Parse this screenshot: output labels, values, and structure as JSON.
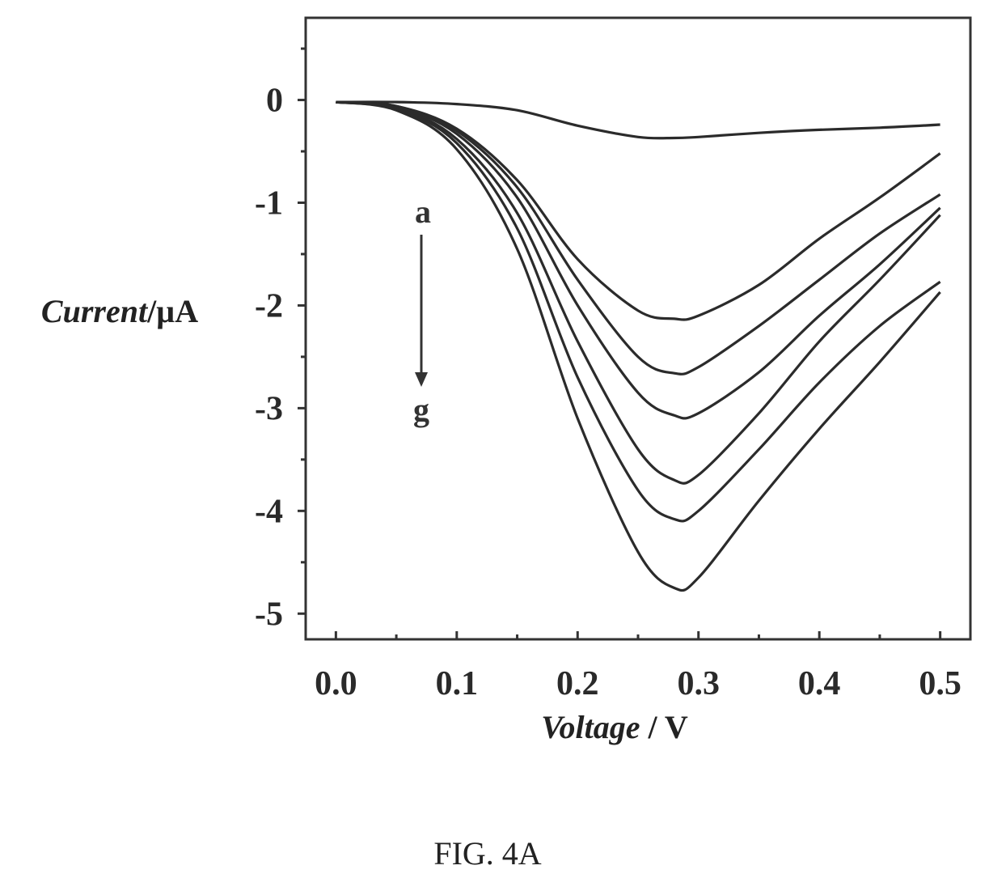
{
  "chart_data": {
    "type": "line",
    "xlabel_italic": "Voltage",
    "xlabel_rest": " / V",
    "ylabel_italic": "Current",
    "ylabel_rest": "/µA",
    "xlim": [
      -0.025,
      0.525
    ],
    "ylim": [
      -5.25,
      0.8
    ],
    "xticks": [
      "0.0",
      "0.1",
      "0.2",
      "0.3",
      "0.4",
      "0.5"
    ],
    "yticks": [
      "0",
      "-1",
      "-2",
      "-3",
      "-4",
      "-5"
    ],
    "grid": false,
    "x": [
      0.0,
      0.05,
      0.1,
      0.15,
      0.2,
      0.25,
      0.28,
      0.3,
      0.35,
      0.4,
      0.45,
      0.5
    ],
    "series": [
      {
        "values": [
          -0.02,
          -0.02,
          -0.04,
          -0.1,
          -0.25,
          -0.36,
          -0.37,
          -0.36,
          -0.32,
          -0.29,
          -0.27,
          -0.24
        ]
      },
      {
        "values": [
          -0.02,
          -0.06,
          -0.28,
          -0.78,
          -1.55,
          -2.05,
          -2.13,
          -2.1,
          -1.8,
          -1.35,
          -0.95,
          -0.52
        ]
      },
      {
        "values": [
          -0.02,
          -0.06,
          -0.3,
          -0.85,
          -1.75,
          -2.5,
          -2.66,
          -2.6,
          -2.2,
          -1.75,
          -1.3,
          -0.92
        ]
      },
      {
        "values": [
          -0.02,
          -0.07,
          -0.33,
          -0.95,
          -2.0,
          -2.85,
          -3.07,
          -3.05,
          -2.65,
          -2.1,
          -1.6,
          -1.05
        ]
      },
      {
        "values": [
          -0.02,
          -0.08,
          -0.38,
          -1.1,
          -2.35,
          -3.4,
          -3.7,
          -3.65,
          -3.05,
          -2.35,
          -1.75,
          -1.12
        ]
      },
      {
        "values": [
          -0.02,
          -0.09,
          -0.42,
          -1.25,
          -2.7,
          -3.8,
          -4.08,
          -4.0,
          -3.4,
          -2.75,
          -2.2,
          -1.77
        ]
      },
      {
        "values": [
          -0.02,
          -0.1,
          -0.48,
          -1.45,
          -3.1,
          -4.4,
          -4.75,
          -4.65,
          -3.9,
          -3.2,
          -2.55,
          -1.87
        ]
      }
    ],
    "annotations": {
      "start_label": "a",
      "end_label": "g"
    }
  },
  "caption": "FIG. 4A"
}
